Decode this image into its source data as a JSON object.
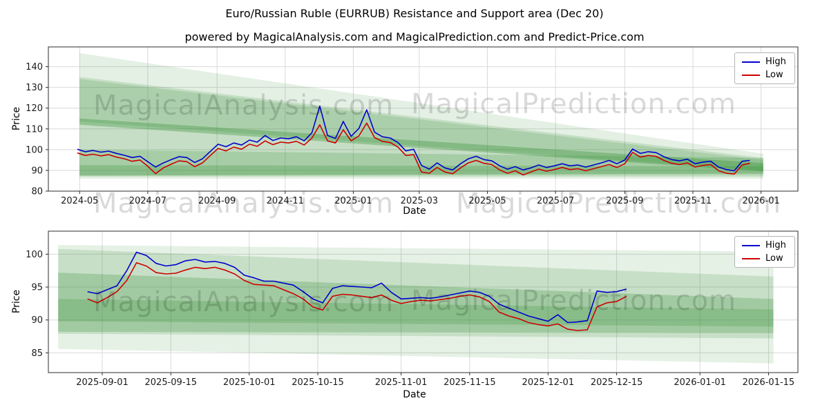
{
  "title": "Euro/Russian Ruble (EURRUB) Resistance and Support area (Dec 20)",
  "subtitle": "powered by MagicalAnalysis.com and MagicalPrediction.com and Predict-Price.com",
  "watermarks": {
    "analysis": "MagicalAnalysis.com",
    "prediction": "MagicalPrediction.com"
  },
  "colors": {
    "high": "#0000cd",
    "low": "#cd0000",
    "band": "#2e8b2e",
    "grid": "#d9d9d9",
    "axis": "#2b2b2b"
  },
  "chart_data": [
    {
      "type": "line",
      "xlabel": "Date",
      "ylabel": "Price",
      "xmin": "2024-04-03",
      "xmax": "2026-02-03",
      "ylim": [
        80,
        149.5
      ],
      "yticks": [
        80,
        90,
        100,
        110,
        120,
        130,
        140
      ],
      "xticks": [
        {
          "d": "2024-05-01",
          "label": "2024-05"
        },
        {
          "d": "2024-07-01",
          "label": "2024-07"
        },
        {
          "d": "2024-09-01",
          "label": "2024-09"
        },
        {
          "d": "2024-11-01",
          "label": "2024-11"
        },
        {
          "d": "2025-01-01",
          "label": "2025-01"
        },
        {
          "d": "2025-03-01",
          "label": "2025-03"
        },
        {
          "d": "2025-05-01",
          "label": "2025-05"
        },
        {
          "d": "2025-07-01",
          "label": "2025-07"
        },
        {
          "d": "2025-09-01",
          "label": "2025-09"
        },
        {
          "d": "2025-11-01",
          "label": "2025-11"
        },
        {
          "d": "2026-01-01",
          "label": "2026-01"
        }
      ],
      "x": [
        "2024-04-29",
        "2024-05-06",
        "2024-05-13",
        "2024-05-20",
        "2024-05-27",
        "2024-06-03",
        "2024-06-10",
        "2024-06-17",
        "2024-06-24",
        "2024-07-01",
        "2024-07-08",
        "2024-07-15",
        "2024-07-22",
        "2024-07-29",
        "2024-08-05",
        "2024-08-12",
        "2024-08-19",
        "2024-08-26",
        "2024-09-02",
        "2024-09-09",
        "2024-09-16",
        "2024-09-23",
        "2024-09-30",
        "2024-10-07",
        "2024-10-14",
        "2024-10-21",
        "2024-10-28",
        "2024-11-04",
        "2024-11-11",
        "2024-11-18",
        "2024-11-25",
        "2024-12-02",
        "2024-12-09",
        "2024-12-16",
        "2024-12-23",
        "2024-12-30",
        "2025-01-06",
        "2025-01-13",
        "2025-01-20",
        "2025-01-27",
        "2025-02-03",
        "2025-02-10",
        "2025-02-17",
        "2025-02-24",
        "2025-03-03",
        "2025-03-10",
        "2025-03-17",
        "2025-03-24",
        "2025-03-31",
        "2025-04-07",
        "2025-04-14",
        "2025-04-21",
        "2025-04-28",
        "2025-05-05",
        "2025-05-12",
        "2025-05-19",
        "2025-05-26",
        "2025-06-02",
        "2025-06-09",
        "2025-06-16",
        "2025-06-23",
        "2025-06-30",
        "2025-07-07",
        "2025-07-14",
        "2025-07-21",
        "2025-07-28",
        "2025-08-04",
        "2025-08-11",
        "2025-08-18",
        "2025-08-25",
        "2025-09-01",
        "2025-09-08",
        "2025-09-15",
        "2025-09-22",
        "2025-09-29",
        "2025-10-06",
        "2025-10-13",
        "2025-10-20",
        "2025-10-27",
        "2025-11-03",
        "2025-11-10",
        "2025-11-17",
        "2025-11-24",
        "2025-12-01",
        "2025-12-08",
        "2025-12-15",
        "2025-12-22"
      ],
      "series": [
        {
          "name": "High",
          "color": "#0000cd",
          "values": [
            100.2,
            99.0,
            99.6,
            98.8,
            99.3,
            98.2,
            97.3,
            96.2,
            96.8,
            94.2,
            91.6,
            93.6,
            95.2,
            96.6,
            96.2,
            93.8,
            95.6,
            99.2,
            102.6,
            101.4,
            103.2,
            102.2,
            104.6,
            103.6,
            106.8,
            104.4,
            105.6,
            105.2,
            106.2,
            104.2,
            108.2,
            121.0,
            106.8,
            105.4,
            113.6,
            106.4,
            110.2,
            119.2,
            108.4,
            106.2,
            105.6,
            103.4,
            99.4,
            100.2,
            92.4,
            90.6,
            93.6,
            91.2,
            90.2,
            93.2,
            95.6,
            96.8,
            95.2,
            94.6,
            92.2,
            90.6,
            91.8,
            90.2,
            91.2,
            92.6,
            91.4,
            92.2,
            93.2,
            92.2,
            92.6,
            91.6,
            92.6,
            93.6,
            94.8,
            93.2,
            95.0,
            100.3,
            98.2,
            99.0,
            98.6,
            96.6,
            95.2,
            94.6,
            95.4,
            93.2,
            94.0,
            94.4,
            91.6,
            90.4,
            89.8,
            94.4,
            94.8
          ]
        },
        {
          "name": "Low",
          "color": "#cd0000",
          "values": [
            98.4,
            97.2,
            97.8,
            97.0,
            97.6,
            96.4,
            95.6,
            94.4,
            95.0,
            92.0,
            88.4,
            91.2,
            93.0,
            94.6,
            94.2,
            91.8,
            93.6,
            97.2,
            100.6,
            99.4,
            101.2,
            100.2,
            102.6,
            101.6,
            104.2,
            102.4,
            103.6,
            103.2,
            104.0,
            102.2,
            105.6,
            112.0,
            104.2,
            103.2,
            109.6,
            104.2,
            106.6,
            112.8,
            105.8,
            104.0,
            103.4,
            101.2,
            97.2,
            97.6,
            89.2,
            88.6,
            91.4,
            89.2,
            88.4,
            91.2,
            93.6,
            94.8,
            93.4,
            92.8,
            90.2,
            88.6,
            89.8,
            87.8,
            89.2,
            90.6,
            89.6,
            90.4,
            91.4,
            90.4,
            90.8,
            89.8,
            90.8,
            91.8,
            92.8,
            91.4,
            93.2,
            98.7,
            96.4,
            97.2,
            96.8,
            94.8,
            93.4,
            92.8,
            93.6,
            91.6,
            92.4,
            92.8,
            89.8,
            88.6,
            88.2,
            92.6,
            93.4
          ]
        }
      ],
      "bands": [
        {
          "alpha": 0.13,
          "points": [
            [
              "2024-05-01",
              146.5
            ],
            [
              "2026-01-03",
              98.0
            ],
            [
              "2026-01-03",
              86.0
            ],
            [
              "2024-05-01",
              86.0
            ]
          ]
        },
        {
          "alpha": 0.17,
          "points": [
            [
              "2024-05-01",
              135.0
            ],
            [
              "2026-01-03",
              96.0
            ],
            [
              "2026-01-03",
              88.0
            ],
            [
              "2024-05-01",
              87.5
            ]
          ]
        },
        {
          "alpha": 0.17,
          "points": [
            [
              "2024-05-01",
              134.0
            ],
            [
              "2026-01-03",
              95.0
            ],
            [
              "2026-01-03",
              90.0
            ],
            [
              "2024-05-01",
              113.5
            ]
          ]
        },
        {
          "alpha": 0.32,
          "points": [
            [
              "2024-05-01",
              115.0
            ],
            [
              "2026-01-03",
              93.5
            ],
            [
              "2026-01-03",
              89.5
            ],
            [
              "2024-05-01",
              112.0
            ]
          ]
        },
        {
          "alpha": 0.2,
          "points": [
            [
              "2024-05-01",
              100.0
            ],
            [
              "2026-01-03",
              96.0
            ],
            [
              "2026-01-03",
              87.0
            ],
            [
              "2024-05-01",
              87.0
            ]
          ]
        },
        {
          "alpha": 0.25,
          "points": [
            [
              "2024-05-01",
              92.5
            ],
            [
              "2026-01-03",
              92.0
            ],
            [
              "2026-01-03",
              88.5
            ],
            [
              "2024-05-01",
              87.5
            ]
          ]
        }
      ]
    },
    {
      "type": "line",
      "xlabel": "Date",
      "ylabel": "Price",
      "xmin": "2025-08-21",
      "xmax": "2026-01-21",
      "ylim": [
        82,
        103.5
      ],
      "yticks": [
        85,
        90,
        95,
        100
      ],
      "xticks": [
        {
          "d": "2025-09-01",
          "label": "2025-09-01"
        },
        {
          "d": "2025-09-15",
          "label": "2025-09-15"
        },
        {
          "d": "2025-10-01",
          "label": "2025-10-01"
        },
        {
          "d": "2025-10-15",
          "label": "2025-10-15"
        },
        {
          "d": "2025-11-01",
          "label": "2025-11-01"
        },
        {
          "d": "2025-11-15",
          "label": "2025-11-15"
        },
        {
          "d": "2025-12-01",
          "label": "2025-12-01"
        },
        {
          "d": "2025-12-15",
          "label": "2025-12-15"
        },
        {
          "d": "2026-01-01",
          "label": "2026-01-01"
        },
        {
          "d": "2026-01-15",
          "label": "2026-01-15"
        }
      ],
      "x": [
        "2025-08-29",
        "2025-08-31",
        "2025-09-02",
        "2025-09-04",
        "2025-09-06",
        "2025-09-08",
        "2025-09-10",
        "2025-09-12",
        "2025-09-14",
        "2025-09-16",
        "2025-09-18",
        "2025-09-20",
        "2025-09-22",
        "2025-09-24",
        "2025-09-26",
        "2025-09-28",
        "2025-09-30",
        "2025-10-02",
        "2025-10-04",
        "2025-10-06",
        "2025-10-08",
        "2025-10-10",
        "2025-10-12",
        "2025-10-14",
        "2025-10-16",
        "2025-10-18",
        "2025-10-20",
        "2025-10-22",
        "2025-10-24",
        "2025-10-26",
        "2025-10-28",
        "2025-10-30",
        "2025-11-01",
        "2025-11-03",
        "2025-11-05",
        "2025-11-07",
        "2025-11-09",
        "2025-11-11",
        "2025-11-13",
        "2025-11-15",
        "2025-11-17",
        "2025-11-19",
        "2025-11-21",
        "2025-11-23",
        "2025-11-25",
        "2025-11-27",
        "2025-11-29",
        "2025-12-01",
        "2025-12-03",
        "2025-12-05",
        "2025-12-07",
        "2025-12-09",
        "2025-12-11",
        "2025-12-13",
        "2025-12-15",
        "2025-12-17"
      ],
      "series": [
        {
          "name": "High",
          "color": "#0000cd",
          "values": [
            94.3,
            94.0,
            94.6,
            95.2,
            97.5,
            100.3,
            99.8,
            98.6,
            98.2,
            98.4,
            99.0,
            99.2,
            98.8,
            98.9,
            98.6,
            98.0,
            96.8,
            96.4,
            95.9,
            95.9,
            95.6,
            95.3,
            94.3,
            93.2,
            92.6,
            94.8,
            95.2,
            95.1,
            95.0,
            94.9,
            95.6,
            94.2,
            93.2,
            93.3,
            93.4,
            93.3,
            93.5,
            93.8,
            94.1,
            94.4,
            94.2,
            93.6,
            92.4,
            91.8,
            91.2,
            90.6,
            90.2,
            89.8,
            90.8,
            89.6,
            89.7,
            89.9,
            94.4,
            94.2,
            94.3,
            94.7
          ]
        },
        {
          "name": "Low",
          "color": "#cd0000",
          "values": [
            93.2,
            92.6,
            93.4,
            94.3,
            96.0,
            98.7,
            98.2,
            97.2,
            97.0,
            97.1,
            97.6,
            98.0,
            97.8,
            98.0,
            97.6,
            97.0,
            96.0,
            95.4,
            95.3,
            95.2,
            94.6,
            94.0,
            93.2,
            92.0,
            91.5,
            93.6,
            93.9,
            93.8,
            93.6,
            93.4,
            93.8,
            93.0,
            92.5,
            92.8,
            93.0,
            92.9,
            93.1,
            93.3,
            93.6,
            93.8,
            93.5,
            92.8,
            91.2,
            90.6,
            90.2,
            89.6,
            89.3,
            89.1,
            89.4,
            88.6,
            88.4,
            88.5,
            92.0,
            92.6,
            92.8,
            93.6
          ]
        }
      ],
      "bands": [
        {
          "alpha": 0.12,
          "points": [
            [
              "2025-08-23",
              101.4
            ],
            [
              "2026-01-16",
              100.4
            ],
            [
              "2026-01-16",
              83.4
            ],
            [
              "2025-08-23",
              85.6
            ]
          ]
        },
        {
          "alpha": 0.17,
          "points": [
            [
              "2025-08-23",
              100.8
            ],
            [
              "2026-01-16",
              96.6
            ],
            [
              "2026-01-16",
              87.2
            ],
            [
              "2025-08-23",
              87.9
            ]
          ]
        },
        {
          "alpha": 0.24,
          "points": [
            [
              "2025-08-23",
              97.2
            ],
            [
              "2026-01-16",
              93.2
            ],
            [
              "2026-01-16",
              88.0
            ],
            [
              "2025-08-23",
              88.2
            ]
          ]
        },
        {
          "alpha": 0.22,
          "points": [
            [
              "2025-08-23",
              93.2
            ],
            [
              "2026-01-16",
              91.6
            ],
            [
              "2026-01-16",
              89.0
            ],
            [
              "2025-08-23",
              89.8
            ]
          ]
        }
      ]
    }
  ]
}
